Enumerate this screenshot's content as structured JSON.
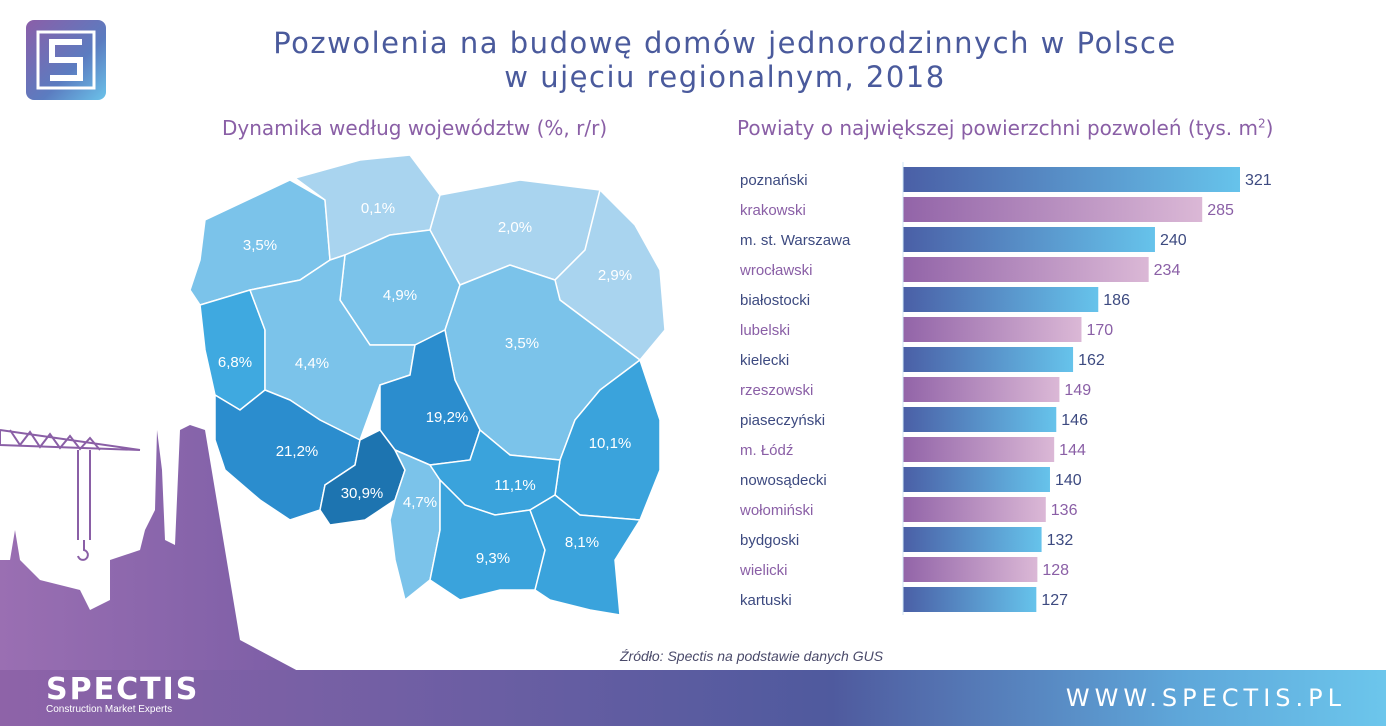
{
  "title_line1": "Pozwolenia na budowę domów jednorodzinnych w Polsce",
  "title_line2": "w ujęciu regionalnym, 2018",
  "brand": {
    "name": "SPECTIS",
    "tagline": "Construction Market Experts",
    "url": "WWW.SPECTIS.PL",
    "logo_letter": "S"
  },
  "source": "Źródło: Spectis na podstawie danych GUS",
  "colors": {
    "title": "#4a5a9c",
    "subtitle": "#8a5fa6",
    "bar_blue": [
      "#4a5fa6",
      "#66c3eb"
    ],
    "bar_purple": [
      "#9264a8",
      "#dbb8d6"
    ]
  },
  "chart_data": [
    {
      "type": "choropleth-map",
      "title": "Dynamika według województw (%, r/r)",
      "regions": [
        {
          "name": "zachodniopomorskie",
          "label": "3,5%",
          "value": 3.5
        },
        {
          "name": "pomorskie",
          "label": "0,1%",
          "value": 0.1
        },
        {
          "name": "warmińsko-mazurskie",
          "label": "2,0%",
          "value": 2.0
        },
        {
          "name": "podlaskie",
          "label": "2,9%",
          "value": 2.9
        },
        {
          "name": "kujawsko-pomorskie",
          "label": "4,9%",
          "value": 4.9
        },
        {
          "name": "lubuskie",
          "label": "6,8%",
          "value": 6.8
        },
        {
          "name": "wielkopolskie",
          "label": "4,4%",
          "value": 4.4
        },
        {
          "name": "mazowieckie",
          "label": "3,5%",
          "value": 3.5
        },
        {
          "name": "łódzkie",
          "label": "19,2%",
          "value": 19.2
        },
        {
          "name": "lubelskie",
          "label": "10,1%",
          "value": 10.1
        },
        {
          "name": "dolnośląskie",
          "label": "21,2%",
          "value": 21.2
        },
        {
          "name": "opolskie",
          "label": "30,9%",
          "value": 30.9
        },
        {
          "name": "śląskie",
          "label": "4,7%",
          "value": 4.7
        },
        {
          "name": "świętokrzyskie",
          "label": "11,1%",
          "value": 11.1
        },
        {
          "name": "małopolskie",
          "label": "9,3%",
          "value": 9.3
        },
        {
          "name": "podkarpackie",
          "label": "8,1%",
          "value": 8.1
        }
      ]
    },
    {
      "type": "bar",
      "orientation": "horizontal",
      "title": "Powiaty o największej powierzchni pozwoleń (tys. m",
      "title_sup": "2",
      "title_end": ")",
      "categories": [
        "poznański",
        "krakowski",
        "m. st. Warszawa",
        "wrocławski",
        "białostocki",
        "lubelski",
        "kielecki",
        "rzeszowski",
        "piaseczyński",
        "m. Łódź",
        "nowosądecki",
        "wołomiński",
        "bydgoski",
        "wielicki",
        "kartuski"
      ],
      "values": [
        321,
        285,
        240,
        234,
        186,
        170,
        162,
        149,
        146,
        144,
        140,
        136,
        132,
        128,
        127
      ]
    }
  ]
}
